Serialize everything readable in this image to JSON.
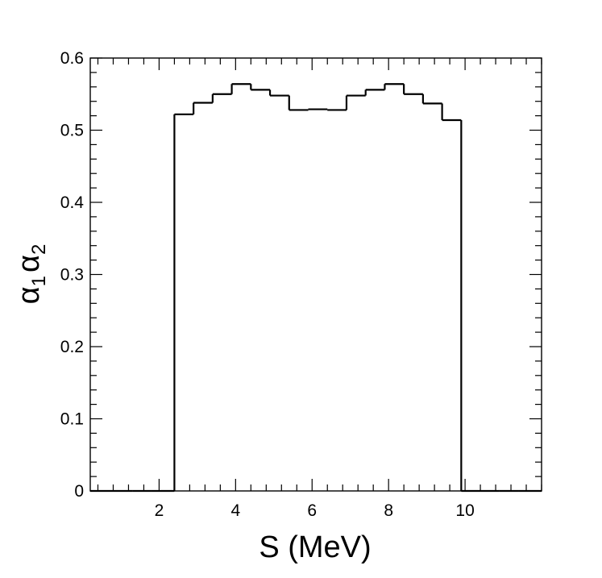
{
  "chart_data": {
    "type": "bar",
    "subtype": "step-histogram",
    "xlabel": "S (MeV)",
    "ylabel": {
      "symbol": "α",
      "sub1": "1",
      "sub2": "2"
    },
    "xlim": [
      0.2,
      12.0
    ],
    "ylim": [
      0,
      0.6
    ],
    "x_major_ticks": [
      2,
      4,
      6,
      8,
      10
    ],
    "x_tick_labels": [
      "2",
      "4",
      "6",
      "8",
      "10"
    ],
    "y_major_ticks": [
      0,
      0.1,
      0.2,
      0.3,
      0.4,
      0.5,
      0.6
    ],
    "y_tick_labels": [
      "0",
      "0.1",
      "0.2",
      "0.3",
      "0.4",
      "0.5",
      "0.6"
    ],
    "bin_edges": [
      0.2,
      0.8,
      1.3,
      1.8,
      2.4,
      2.9,
      3.4,
      3.9,
      4.4,
      4.9,
      5.4,
      5.9,
      6.4,
      6.9,
      7.4,
      7.9,
      8.4,
      8.9,
      9.4,
      9.9,
      10.4,
      10.9,
      11.4,
      12.0
    ],
    "values": [
      0,
      0,
      0,
      0,
      0.522,
      0.538,
      0.55,
      0.564,
      0.556,
      0.548,
      0.528,
      0.529,
      0.528,
      0.548,
      0.556,
      0.564,
      0.55,
      0.537,
      0.514,
      0,
      0,
      0,
      0
    ],
    "grid": false,
    "legend": "none",
    "colors": {
      "line": "#000000",
      "background": "#ffffff"
    }
  }
}
